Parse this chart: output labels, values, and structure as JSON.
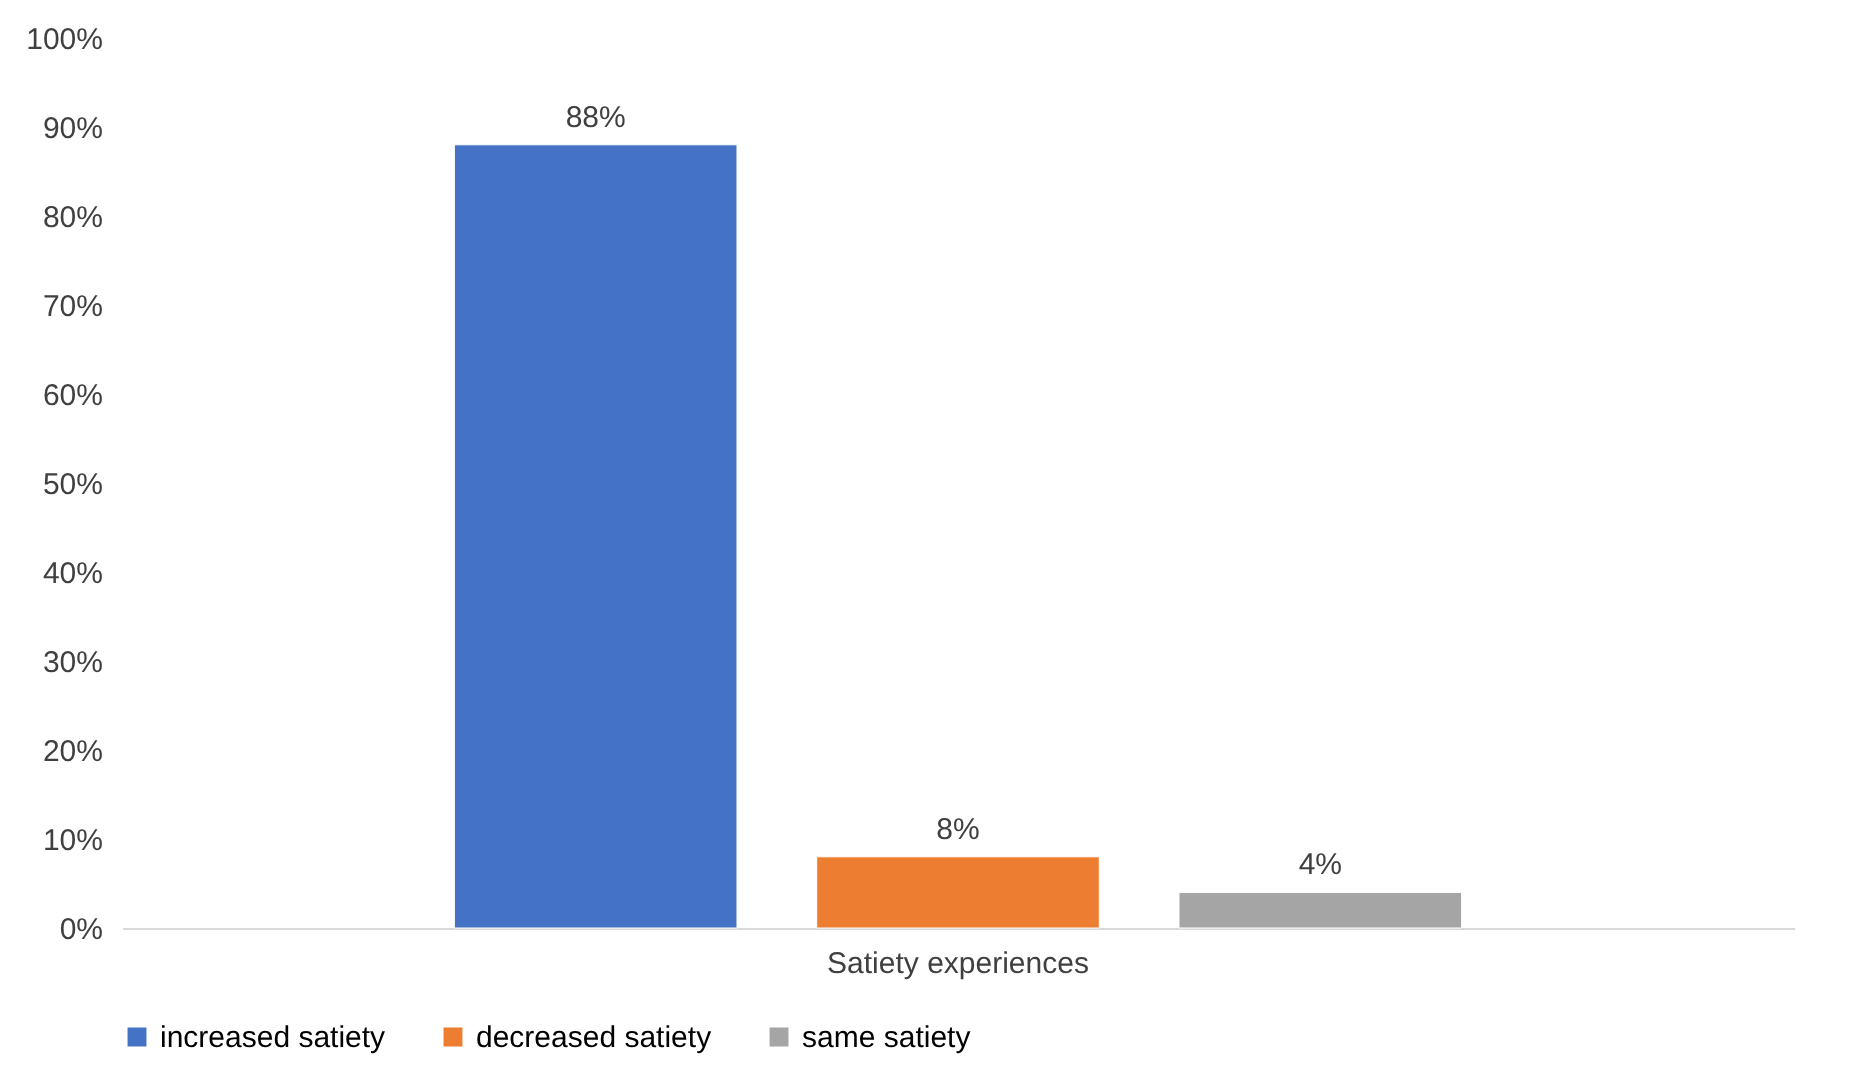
{
  "chart_data": {
    "type": "bar",
    "categories": [
      "Satiety experiences"
    ],
    "series": [
      {
        "name": "increased satiety",
        "color": "#4472c4",
        "values": [
          88
        ],
        "value_labels": [
          "88%"
        ]
      },
      {
        "name": "decreased satiety",
        "color": "#ed7d31",
        "values": [
          8
        ],
        "value_labels": [
          "8%"
        ]
      },
      {
        "name": "same satiety",
        "color": "#a5a5a5",
        "values": [
          4
        ],
        "value_labels": [
          "4%"
        ]
      }
    ],
    "ylim": [
      0,
      100
    ],
    "yticks": [
      {
        "value": 0,
        "label": "0%"
      },
      {
        "value": 10,
        "label": "10%"
      },
      {
        "value": 20,
        "label": "20%"
      },
      {
        "value": 30,
        "label": "30%"
      },
      {
        "value": 40,
        "label": "40%"
      },
      {
        "value": 50,
        "label": "50%"
      },
      {
        "value": 60,
        "label": "60%"
      },
      {
        "value": 70,
        "label": "70%"
      },
      {
        "value": 80,
        "label": "80%"
      },
      {
        "value": 90,
        "label": "90%"
      },
      {
        "value": 100,
        "label": "100%"
      }
    ],
    "grid": false,
    "legend": "bottom"
  }
}
